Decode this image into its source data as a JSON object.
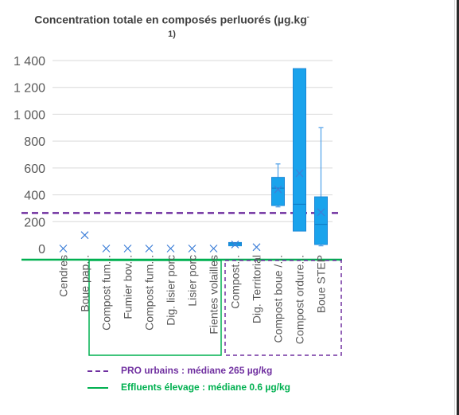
{
  "colors": {
    "box_fill": "#1aa3ec",
    "box_stroke": "#1a86d6",
    "whisker": "#4d9fe8",
    "axis_text": "#595959",
    "urbain_line": "#7030a0",
    "elevage_line": "#00b050"
  },
  "chart_data": {
    "type": "boxplot",
    "title_line1": "Concentration totale en composés perluorés (µg.kg",
    "title_sup": "-",
    "title_line2": "1)",
    "ylim": [
      0,
      1400
    ],
    "yticks": [
      {
        "v": 0,
        "label": "0"
      },
      {
        "v": 200,
        "label": "200"
      },
      {
        "v": 400,
        "label": "400"
      },
      {
        "v": 600,
        "label": "600"
      },
      {
        "v": 800,
        "label": "800"
      },
      {
        "v": 1000,
        "label": "1 000"
      },
      {
        "v": 1200,
        "label": "1 200"
      },
      {
        "v": 1400,
        "label": "1 400"
      }
    ],
    "grid": true,
    "categories": [
      {
        "label": "Cendres",
        "min": 0,
        "q1": 0,
        "median": 0,
        "q3": 0,
        "max": 0,
        "mean": 0
      },
      {
        "label": "Boue pap...",
        "min": 100,
        "q1": 100,
        "median": 100,
        "q3": 100,
        "max": 100,
        "mean": 100
      },
      {
        "label": "Compost fum...",
        "min": 0,
        "q1": 0,
        "median": 0,
        "q3": 0,
        "max": 0,
        "mean": 0
      },
      {
        "label": "Fumier bov...",
        "min": 0,
        "q1": 0,
        "median": 0,
        "q3": 0,
        "max": 0,
        "mean": 0
      },
      {
        "label": "Compost fum...",
        "min": 0,
        "q1": 0,
        "median": 0,
        "q3": 0,
        "max": 0,
        "mean": 0
      },
      {
        "label": "Dig. lisier porc",
        "min": 0,
        "q1": 0,
        "median": 0,
        "q3": 0,
        "max": 0,
        "mean": 0
      },
      {
        "label": "Lisier porc",
        "min": 0,
        "q1": 0,
        "median": 0,
        "q3": 0,
        "max": 0,
        "mean": 0
      },
      {
        "label": "Fientes volailles",
        "min": 0,
        "q1": 0,
        "median": 0,
        "q3": 0,
        "max": 0,
        "mean": 0
      },
      {
        "label": "Compost...",
        "min": 20,
        "q1": 20,
        "median": 35,
        "q3": 45,
        "max": 45,
        "mean": 30
      },
      {
        "label": "Dig. Territorial",
        "min": 10,
        "q1": 10,
        "median": 10,
        "q3": 10,
        "max": 10,
        "mean": 10
      },
      {
        "label": "Compost boue /...",
        "min": 310,
        "q1": 320,
        "median": 450,
        "q3": 530,
        "max": 630,
        "mean": 440
      },
      {
        "label": "Compost ordure...",
        "min": 130,
        "q1": 130,
        "median": 330,
        "q3": 1340,
        "max": 1340,
        "mean": 560
      },
      {
        "label": "Boue STEP",
        "min": 20,
        "q1": 30,
        "median": 180,
        "q3": 385,
        "max": 900,
        "mean": 270
      }
    ],
    "reference_lines": [
      {
        "name": "PRO urbains : médiane 265 µg/kg",
        "value": 265,
        "style": "dashed",
        "color": "#7030a0"
      },
      {
        "name": "Effluents élevage : médiane 0.6 µg/kg",
        "value": 0.6,
        "style": "solid",
        "color": "#00b050"
      }
    ]
  },
  "legend": {
    "urbain": "PRO urbains : médiane 265 µg/kg",
    "elevage": "Effluents élevage : médiane 0.6 µg/kg"
  }
}
